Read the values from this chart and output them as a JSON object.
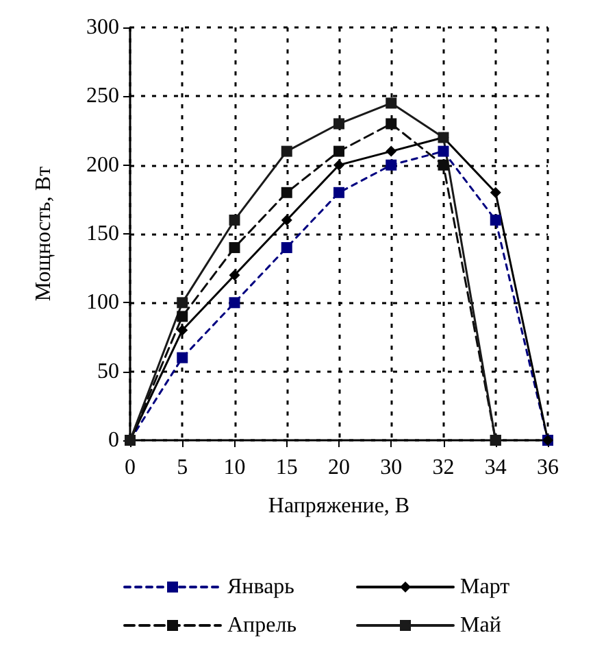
{
  "chart_data": {
    "type": "line",
    "xlabel": "Напряжение, В",
    "ylabel": "Мощность, Вт",
    "categories": [
      "0",
      "5",
      "10",
      "15",
      "20",
      "30",
      "32",
      "34",
      "36"
    ],
    "ylim": [
      0,
      300
    ],
    "yticks": [
      0,
      50,
      100,
      150,
      200,
      250,
      300
    ],
    "grid": true,
    "legend": "bottom",
    "series": [
      {
        "name": "Январь",
        "color": "#000080",
        "marker": "square",
        "line_style": "dotted",
        "values": [
          0,
          60,
          100,
          140,
          180,
          200,
          210,
          160,
          0
        ]
      },
      {
        "name": "Март",
        "color": "#000000",
        "marker": "diamond",
        "line_style": "solid",
        "values": [
          0,
          80,
          120,
          160,
          200,
          210,
          220,
          180,
          0
        ]
      },
      {
        "name": "Апрель",
        "color": "#0d0d0d",
        "marker": "square",
        "line_style": "dashed",
        "values": [
          0,
          90,
          140,
          180,
          210,
          230,
          200,
          0,
          null
        ]
      },
      {
        "name": "Май",
        "color": "#1a1a1a",
        "marker": "square",
        "line_style": "solid",
        "values": [
          0,
          100,
          160,
          210,
          230,
          245,
          220,
          0,
          null
        ]
      }
    ]
  }
}
